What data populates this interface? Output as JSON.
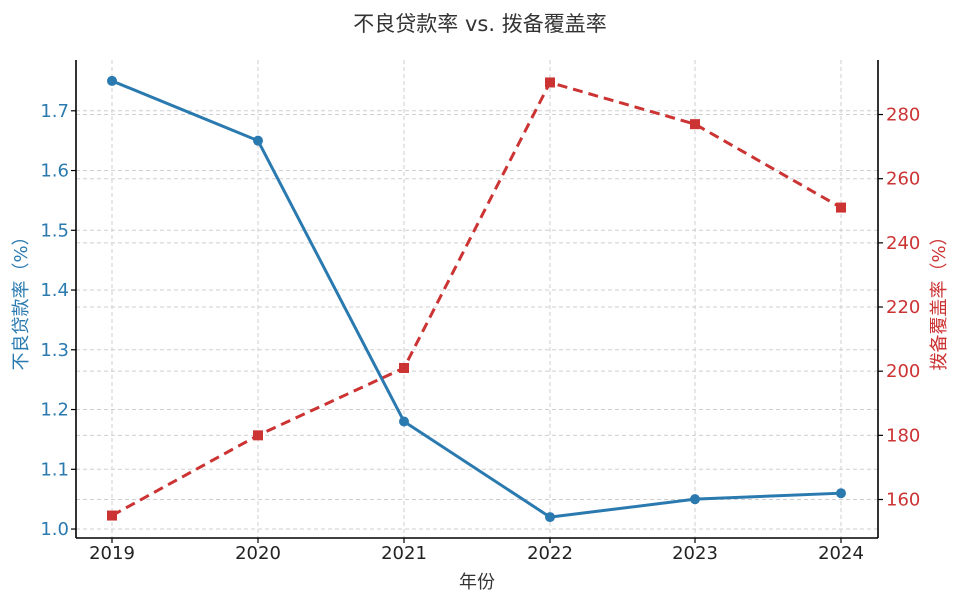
{
  "chart_data": {
    "type": "line",
    "title": "不良贷款率 vs. 拨备覆盖率",
    "xlabel": "年份",
    "ylabel_left": "不良贷款率（%）",
    "ylabel_right": "拨备覆盖率（%）",
    "categories": [
      "2019",
      "2020",
      "2021",
      "2022",
      "2023",
      "2024"
    ],
    "left_ylim": [
      0.985,
      1.785
    ],
    "right_ylim": [
      148,
      297
    ],
    "left_ticks": [
      "1.0",
      "1.1",
      "1.2",
      "1.3",
      "1.4",
      "1.5",
      "1.6",
      "1.7"
    ],
    "right_ticks": [
      "160",
      "180",
      "200",
      "220",
      "240",
      "260",
      "280"
    ],
    "grid": true,
    "series": [
      {
        "name": "不良贷款率（%）",
        "axis": "left",
        "color": "#2a7ab0",
        "line_style": "solid",
        "marker": "circle",
        "values": [
          1.75,
          1.65,
          1.18,
          1.02,
          1.05,
          1.06
        ]
      },
      {
        "name": "拨备覆盖率（%）",
        "axis": "right",
        "color": "#cc3333",
        "line_style": "dashed",
        "marker": "square",
        "values": [
          155,
          180,
          201,
          290,
          277,
          251
        ]
      }
    ]
  }
}
